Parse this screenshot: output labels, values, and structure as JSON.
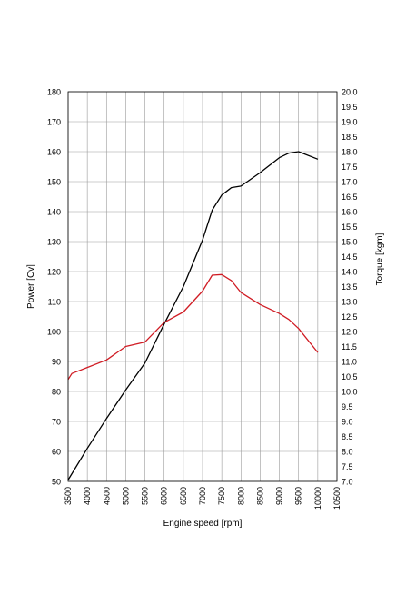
{
  "chart_data": {
    "type": "line",
    "title": "",
    "xlabel": "Engine speed [rpm]",
    "ylabel_left": "Power [Cv]",
    "ylabel_right": "Torque [kgm]",
    "x_ticks": [
      "3500",
      "4000",
      "4500",
      "5000",
      "5500",
      "6000",
      "6500",
      "7000",
      "7500",
      "8000",
      "8500",
      "9000",
      "9500",
      "10000",
      "10500"
    ],
    "y_left_ticks": [
      "50",
      "60",
      "70",
      "80",
      "90",
      "100",
      "110",
      "120",
      "130",
      "140",
      "150",
      "160",
      "170",
      "180"
    ],
    "y_right_ticks": [
      "7.0",
      "7.5",
      "8.0",
      "8.5",
      "9.0",
      "9.5",
      "10.0",
      "10.5",
      "11.0",
      "11.5",
      "12.0",
      "12.5",
      "13.0",
      "13.5",
      "14.0",
      "14.5",
      "15.0",
      "15.5",
      "16.0",
      "16.5",
      "17.0",
      "17.5",
      "18.0",
      "18.5",
      "19.0",
      "19.5",
      "20.0"
    ],
    "xlim": [
      3500,
      10500
    ],
    "ylim_left": [
      50,
      180
    ],
    "ylim_right": [
      7.0,
      20.0
    ],
    "grid": true,
    "series": [
      {
        "color": "#000000",
        "axis": "left",
        "x": [
          3500,
          4000,
          4500,
          5000,
          5500,
          6000,
          6500,
          7000,
          7250,
          7500,
          7750,
          8000,
          8500,
          9000,
          9250,
          9500,
          10000
        ],
        "y": [
          50.5,
          61,
          71,
          80.5,
          89.5,
          102.5,
          115,
          130.5,
          140.5,
          145.5,
          148,
          148.5,
          153,
          158,
          159.5,
          160,
          157.5
        ]
      },
      {
        "color": "#d01c24",
        "axis": "right",
        "x": [
          3500,
          3600,
          4000,
          4500,
          5000,
          5500,
          6000,
          6500,
          7000,
          7250,
          7500,
          7750,
          8000,
          8500,
          9000,
          9250,
          9500,
          10000
        ],
        "y": [
          10.4,
          10.6,
          10.8,
          11.05,
          11.5,
          11.65,
          12.3,
          12.65,
          13.35,
          13.88,
          13.9,
          13.7,
          13.3,
          12.9,
          12.6,
          12.4,
          12.1,
          11.3
        ]
      }
    ]
  }
}
